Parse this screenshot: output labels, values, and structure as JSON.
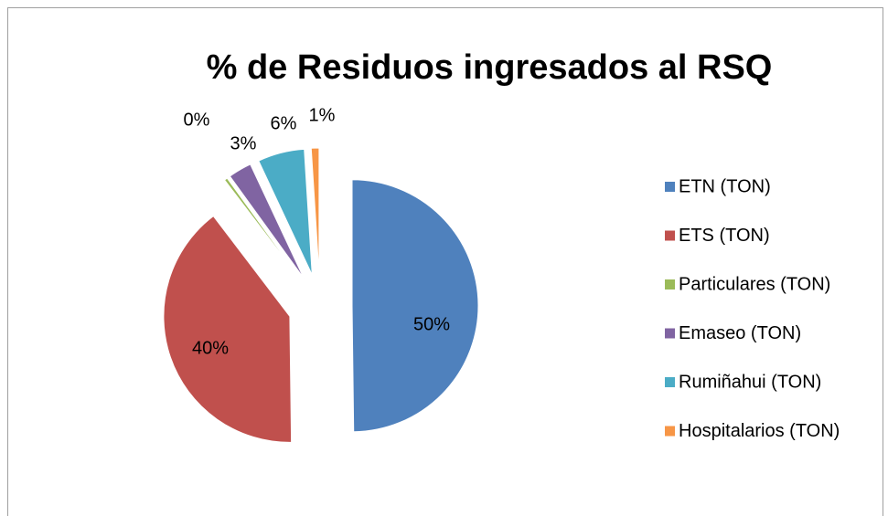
{
  "chart_data": {
    "type": "pie",
    "title": "% de Residuos ingresados al RSQ",
    "categories": [
      "ETN (TON)",
      "ETS (TON)",
      "Particulares (TON)",
      "Emaseo (TON)",
      "Rumiñahui (TON)",
      "Hospitalarios (TON)"
    ],
    "values": [
      50,
      40,
      0.4,
      3,
      6,
      1
    ],
    "value_labels": [
      "50%",
      "40%",
      "0%",
      "3%",
      "6%",
      "1%"
    ],
    "colors": [
      "#4f81bd",
      "#c0504d",
      "#9bbb59",
      "#8064a2",
      "#4bacc6",
      "#f79646"
    ],
    "legend": "right"
  }
}
